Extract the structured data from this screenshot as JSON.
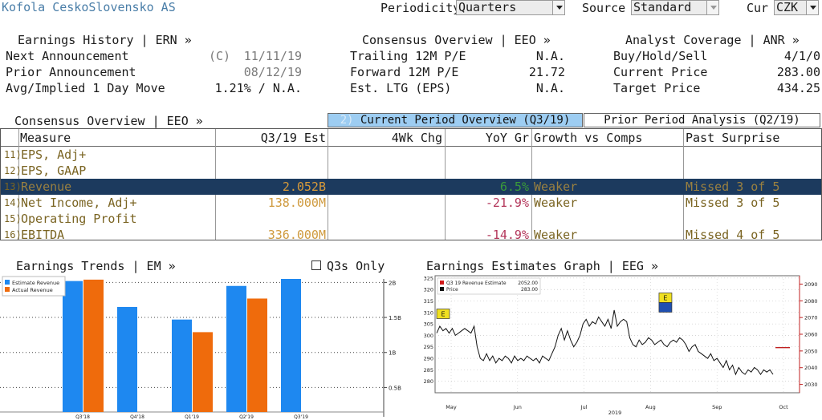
{
  "header": {
    "company": "Kofola CeskoSlovensko AS",
    "periodicity_label": "Periodicity",
    "periodicity_value": "Quarters",
    "source_label": "Source",
    "source_value": "Standard",
    "cur_label": "Cur",
    "cur_value": "CZK"
  },
  "earnings_history": {
    "title": "Earnings History | ERN »",
    "rows": [
      {
        "label": "Next Announcement",
        "prefix": "(C)",
        "value": "11/11/19"
      },
      {
        "label": "Prior Announcement",
        "prefix": "",
        "value": "08/12/19"
      },
      {
        "label": "Avg/Implied 1 Day Move",
        "prefix": "",
        "value": "1.21% / N.A."
      }
    ]
  },
  "consensus_overview_top": {
    "title": "Consensus Overview | EEO »",
    "rows": [
      {
        "label": "Trailing 12M P/E",
        "value": "N.A."
      },
      {
        "label": "Forward 12M P/E",
        "value": "21.72"
      },
      {
        "label": "Est. LTG (EPS)",
        "value": "N.A."
      }
    ]
  },
  "analyst_coverage": {
    "title": "Analyst Coverage | ANR »",
    "rows": [
      {
        "label": "Buy/Hold/Sell",
        "value": "4/1/0"
      },
      {
        "label": "Current Price",
        "value": "283.00"
      },
      {
        "label": "Target Price",
        "value": "434.25"
      }
    ]
  },
  "consensus_section": {
    "title": "Consensus Overview | EEO »",
    "tab_current_num": "2)",
    "tab_current": "Current Period Overview (Q3/19)",
    "tab_prior": "Prior Period Analysis (Q2/19)"
  },
  "table": {
    "headers": [
      "Measure",
      "Q3/19 Est",
      "4Wk Chg",
      "YoY Gr",
      "Growth vs Comps",
      "Past Surprise"
    ],
    "rows": [
      {
        "num": "11)",
        "measure": "EPS, Adj+",
        "est": "",
        "chg": "",
        "yoy": "",
        "growth": "",
        "surprise": ""
      },
      {
        "num": "12)",
        "measure": "EPS, GAAP",
        "est": "",
        "chg": "",
        "yoy": "",
        "growth": "",
        "surprise": ""
      },
      {
        "num": "13)",
        "measure": "Revenue",
        "est": "2.052B",
        "chg": "",
        "yoy": "6.5%",
        "growth": "Weaker",
        "surprise": "Missed 3 of 5"
      },
      {
        "num": "14)",
        "measure": "Net Income, Adj+",
        "est": "138.000M",
        "chg": "",
        "yoy": "-21.9%",
        "growth": "Weaker",
        "surprise": "Missed 3 of 5"
      },
      {
        "num": "15)",
        "measure": "Operating Profit",
        "est": "",
        "chg": "",
        "yoy": "",
        "growth": "",
        "surprise": ""
      },
      {
        "num": "16)",
        "measure": "EBITDA",
        "est": "336.000M",
        "chg": "",
        "yoy": "-14.9%",
        "growth": "Weaker",
        "surprise": "Missed 4 of 5"
      }
    ]
  },
  "trends": {
    "title": "Earnings Trends | EM »",
    "q3s_only": "Q3s Only"
  },
  "estimates_graph": {
    "title": "Earnings Estimates Graph | EEG »"
  },
  "chart_data": [
    {
      "type": "bar",
      "categories": [
        "Q3'18",
        "Q4'18",
        "Q1'19",
        "Q2'19",
        "Q3'19"
      ],
      "series": [
        {
          "name": "Estimate Revenue",
          "values": [
            2.02,
            1.65,
            1.47,
            1.95,
            2.05
          ],
          "color": "#1e88f0"
        },
        {
          "name": "Actual Revenue",
          "values": [
            2.04,
            null,
            1.29,
            1.77,
            null
          ],
          "color": "#ef6b0c"
        }
      ],
      "ylim": [
        0.15,
        2.05
      ],
      "yticks": [
        {
          "v": 0.5,
          "label": "0.5B"
        },
        {
          "v": 1.0,
          "label": "1B"
        },
        {
          "v": 1.5,
          "label": "1.5B"
        },
        {
          "v": 2.0,
          "label": "2B"
        }
      ],
      "grid": true,
      "legend": "top-left"
    },
    {
      "type": "line",
      "legend_items": [
        {
          "name": "Q3 19 Revenue Estimate",
          "value": "2052.00",
          "color": "#d11a1a"
        },
        {
          "name": "Price",
          "value": "283.00",
          "color": "#111111"
        }
      ],
      "x_labels": [
        "May",
        "Jun",
        "Jul",
        "Aug",
        "Sep",
        "Oct"
      ],
      "year_label": "2019",
      "left_axis": {
        "min": 275,
        "max": 326,
        "ticks": [
          280,
          285,
          290,
          295,
          300,
          305,
          310,
          315,
          320,
          325
        ]
      },
      "right_axis": {
        "min": 2025,
        "max": 2095,
        "ticks": [
          2030,
          2040,
          2050,
          2060,
          2070,
          2080,
          2090
        ]
      },
      "price_series": [
        301,
        304,
        302,
        303,
        301,
        303,
        300,
        301,
        302,
        303,
        302,
        301,
        304,
        295,
        290,
        289,
        292,
        289,
        291,
        288,
        290,
        289,
        291,
        290,
        288,
        291,
        289,
        290,
        289,
        291,
        290,
        289,
        290,
        288,
        291,
        290,
        289,
        292,
        295,
        300,
        303,
        298,
        302,
        298,
        295,
        297,
        300,
        305,
        307,
        304,
        306,
        305,
        308,
        306,
        304,
        307,
        303,
        311,
        304,
        306,
        307,
        306,
        299,
        296,
        295,
        298,
        296,
        297,
        299,
        298,
        296,
        297,
        298,
        296,
        295,
        297,
        298,
        297,
        299,
        298,
        296,
        293,
        295,
        296,
        293,
        292,
        291,
        290,
        292,
        289,
        290,
        288,
        286,
        289,
        285,
        287,
        283,
        286,
        284,
        283,
        285,
        284,
        286,
        285,
        283,
        285,
        284,
        285,
        283
      ],
      "estimate_value": 2052,
      "markers": [
        {
          "label": "E",
          "at": 0.0
        },
        {
          "label": "E",
          "at": 0.61
        }
      ]
    }
  ]
}
